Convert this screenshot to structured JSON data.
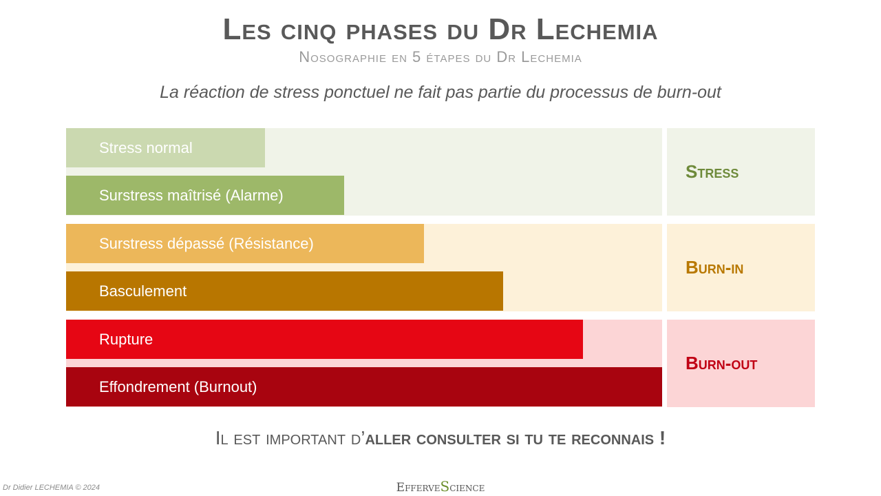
{
  "header": {
    "title": "Les cinq phases du Dr Lechemia",
    "subtitle": "Nosographie en 5 étapes du Dr Lechemia",
    "note": "La réaction de stress ponctuel ne fait pas partie du processus de burn-out"
  },
  "groups": [
    {
      "label": "Stress",
      "band_color": "#f0f3e8",
      "label_color": "#6e8a3a"
    },
    {
      "label": "Burn-in",
      "band_color": "#fdf1d9",
      "label_color": "#b87800"
    },
    {
      "label": "Burn-out",
      "band_color": "#fcd5d6",
      "label_color": "#c00014"
    }
  ],
  "phases": [
    {
      "label": "Stress normal",
      "level": 1,
      "color": "#cbd9b0",
      "group": 0
    },
    {
      "label": "Surstress maîtrisé (Alarme)",
      "level": 2,
      "color": "#9db869",
      "group": 0
    },
    {
      "label": "Surstress dépassé (Résistance)",
      "level": 3,
      "color": "#ecb75a",
      "group": 1
    },
    {
      "label": "Basculement",
      "level": 4,
      "color": "#b87600",
      "group": 1
    },
    {
      "label": "Rupture",
      "level": 5,
      "color": "#e60614",
      "group": 2
    },
    {
      "label": "Effondrement (Burnout)",
      "level": 6,
      "color": "#a8040f",
      "group": 2
    }
  ],
  "max_level": 6,
  "cta": {
    "part1": "Il est important d’",
    "part2": "aller consulter si tu te reconnais !"
  },
  "footer": {
    "copyright": "Dr Didier LECHEMIA © 2024",
    "logo_part1": "Efferve",
    "logo_s": "S",
    "logo_part2": "cience"
  }
}
